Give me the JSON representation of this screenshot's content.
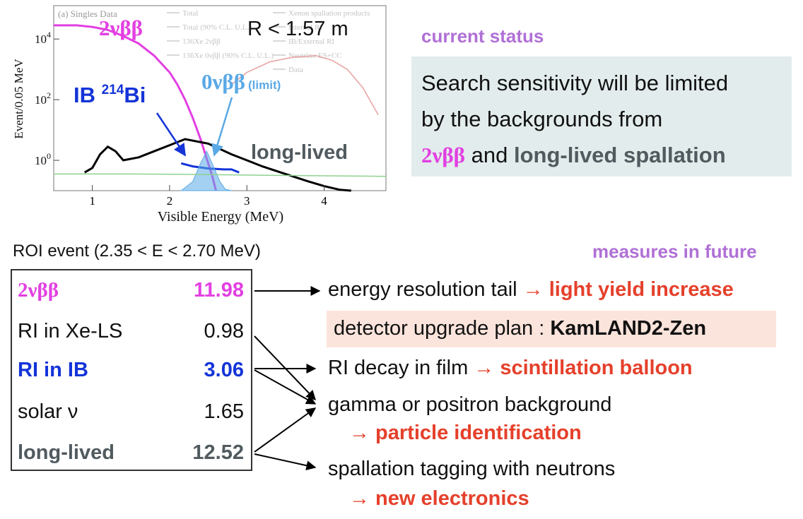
{
  "chart_data": {
    "type": "line",
    "panel_label": "(a) Singles Data",
    "xlabel": "Visible Energy (MeV)",
    "ylabel": "Event/0.05 MeV",
    "x_ticks": [
      "1",
      "2",
      "3",
      "4"
    ],
    "y_ticks": [
      "10^0",
      "10^2",
      "10^4"
    ],
    "xlim": [
      0.5,
      4.8
    ],
    "ylim_log10": [
      -1.0,
      5.1
    ],
    "legend": [
      "Total",
      "Total (90% C.L. U.L.)",
      "136Xe 2νββ",
      "136Xe 0νββ (90% C.L. U.L.)",
      "Xenon spallation products",
      "Internal RI",
      "IB/External RI",
      "Neutrino ES+CC",
      "Data"
    ],
    "series": [
      {
        "name": "136Xe 2νββ",
        "color": "#e23fe2",
        "x": [
          0.5,
          0.8,
          1.0,
          1.2,
          1.4,
          1.6,
          1.8,
          2.0,
          2.1,
          2.2,
          2.3,
          2.4,
          2.5,
          2.55,
          2.6
        ],
        "log10y": [
          4.45,
          4.45,
          4.4,
          4.3,
          4.1,
          3.85,
          3.45,
          2.9,
          2.5,
          2.0,
          1.4,
          0.7,
          -0.1,
          -0.5,
          -1.0
        ]
      },
      {
        "name": "IB/External RI",
        "color": "#1434d8",
        "x": [
          2.15,
          2.3,
          2.5,
          2.7,
          2.8,
          2.9
        ],
        "log10y": [
          -0.1,
          -0.2,
          -0.27,
          -0.3,
          -0.3,
          -0.4
        ]
      },
      {
        "name": "Xenon spallation products",
        "color": "#000000",
        "x": [
          0.9,
          1.0,
          1.1,
          1.2,
          1.3,
          1.4,
          1.6,
          1.8,
          2.0,
          2.2,
          2.5,
          2.8,
          3.0,
          3.2,
          3.5,
          3.8,
          4.0,
          4.2,
          4.35
        ],
        "log10y": [
          -0.4,
          -0.25,
          0.2,
          0.45,
          0.3,
          0.0,
          0.1,
          0.3,
          0.5,
          0.7,
          0.55,
          0.2,
          0.0,
          -0.2,
          -0.45,
          -0.7,
          -0.85,
          -0.97,
          -1.0
        ]
      },
      {
        "name": "136Xe 0νββ (90% C.L. U.L.)",
        "color": "#5aa9e6",
        "x": [
          2.15,
          2.3,
          2.4,
          2.48,
          2.55,
          2.65,
          2.72,
          2.8
        ],
        "log10y": [
          -1.0,
          -0.7,
          -0.1,
          0.3,
          -0.1,
          -0.7,
          -0.95,
          -1.0
        ]
      },
      {
        "name": "Neutrino ES+CC",
        "color": "#8fd18f",
        "x": [
          0.5,
          1.5,
          2.5,
          3.5,
          4.5,
          4.8
        ],
        "log10y": [
          -0.45,
          -0.45,
          -0.47,
          -0.5,
          -0.52,
          -0.53
        ]
      },
      {
        "name": "Data",
        "color": "#e8a0a0",
        "x": [
          2.8,
          3.0,
          3.3,
          3.6,
          3.9,
          4.1,
          4.3,
          4.5,
          4.7
        ],
        "log10y": [
          2.5,
          2.9,
          3.25,
          3.4,
          3.45,
          3.3,
          3.0,
          2.4,
          1.5
        ]
      }
    ],
    "annotations": {
      "two_nbb": "2νββ",
      "radius_cut": "R < 1.57 m",
      "ib_bi_prefix": "IB ",
      "ib_bi_mass": "214",
      "ib_bi_element": "Bi",
      "zero_nbb": "0νββ",
      "zero_nbb_note": "(limit)",
      "long_lived": "long-lived"
    }
  },
  "status": {
    "label": "current status",
    "line1": "Search sensitivity will be limited",
    "line2": "by the backgrounds from",
    "hl1": "2νββ",
    "mid": " and ",
    "hl2": "long-lived spallation"
  },
  "roi": {
    "title": "ROI event (2.35 < E < 2.70 MeV)",
    "rows": [
      {
        "name": "2νββ",
        "value": "11.98",
        "color": "#e23fe2"
      },
      {
        "name": "RI in Xe-LS",
        "value": "0.98",
        "color": "#111111"
      },
      {
        "name": "RI in IB",
        "value": "3.06",
        "color": "#1434d8"
      },
      {
        "name": "solar ν",
        "value": "1.65",
        "color": "#111111"
      },
      {
        "name": "long-lived",
        "value": "12.52",
        "color": "#505a5f"
      }
    ]
  },
  "future": {
    "label": "measures in future",
    "m1_text": "energy resolution tail ",
    "m1_sol": "→ light yield increase",
    "upgrade_text": "detector upgrade plan : ",
    "upgrade_name": "KamLAND2-Zen",
    "m2_text": "RI decay in film ",
    "m2_sol": "→ scintillation balloon",
    "m3_text": "gamma or positron background",
    "m3_sol": "→ particle identification",
    "m4_text": "spallation tagging with neutrons",
    "m4_sol": "→ new electronics"
  }
}
